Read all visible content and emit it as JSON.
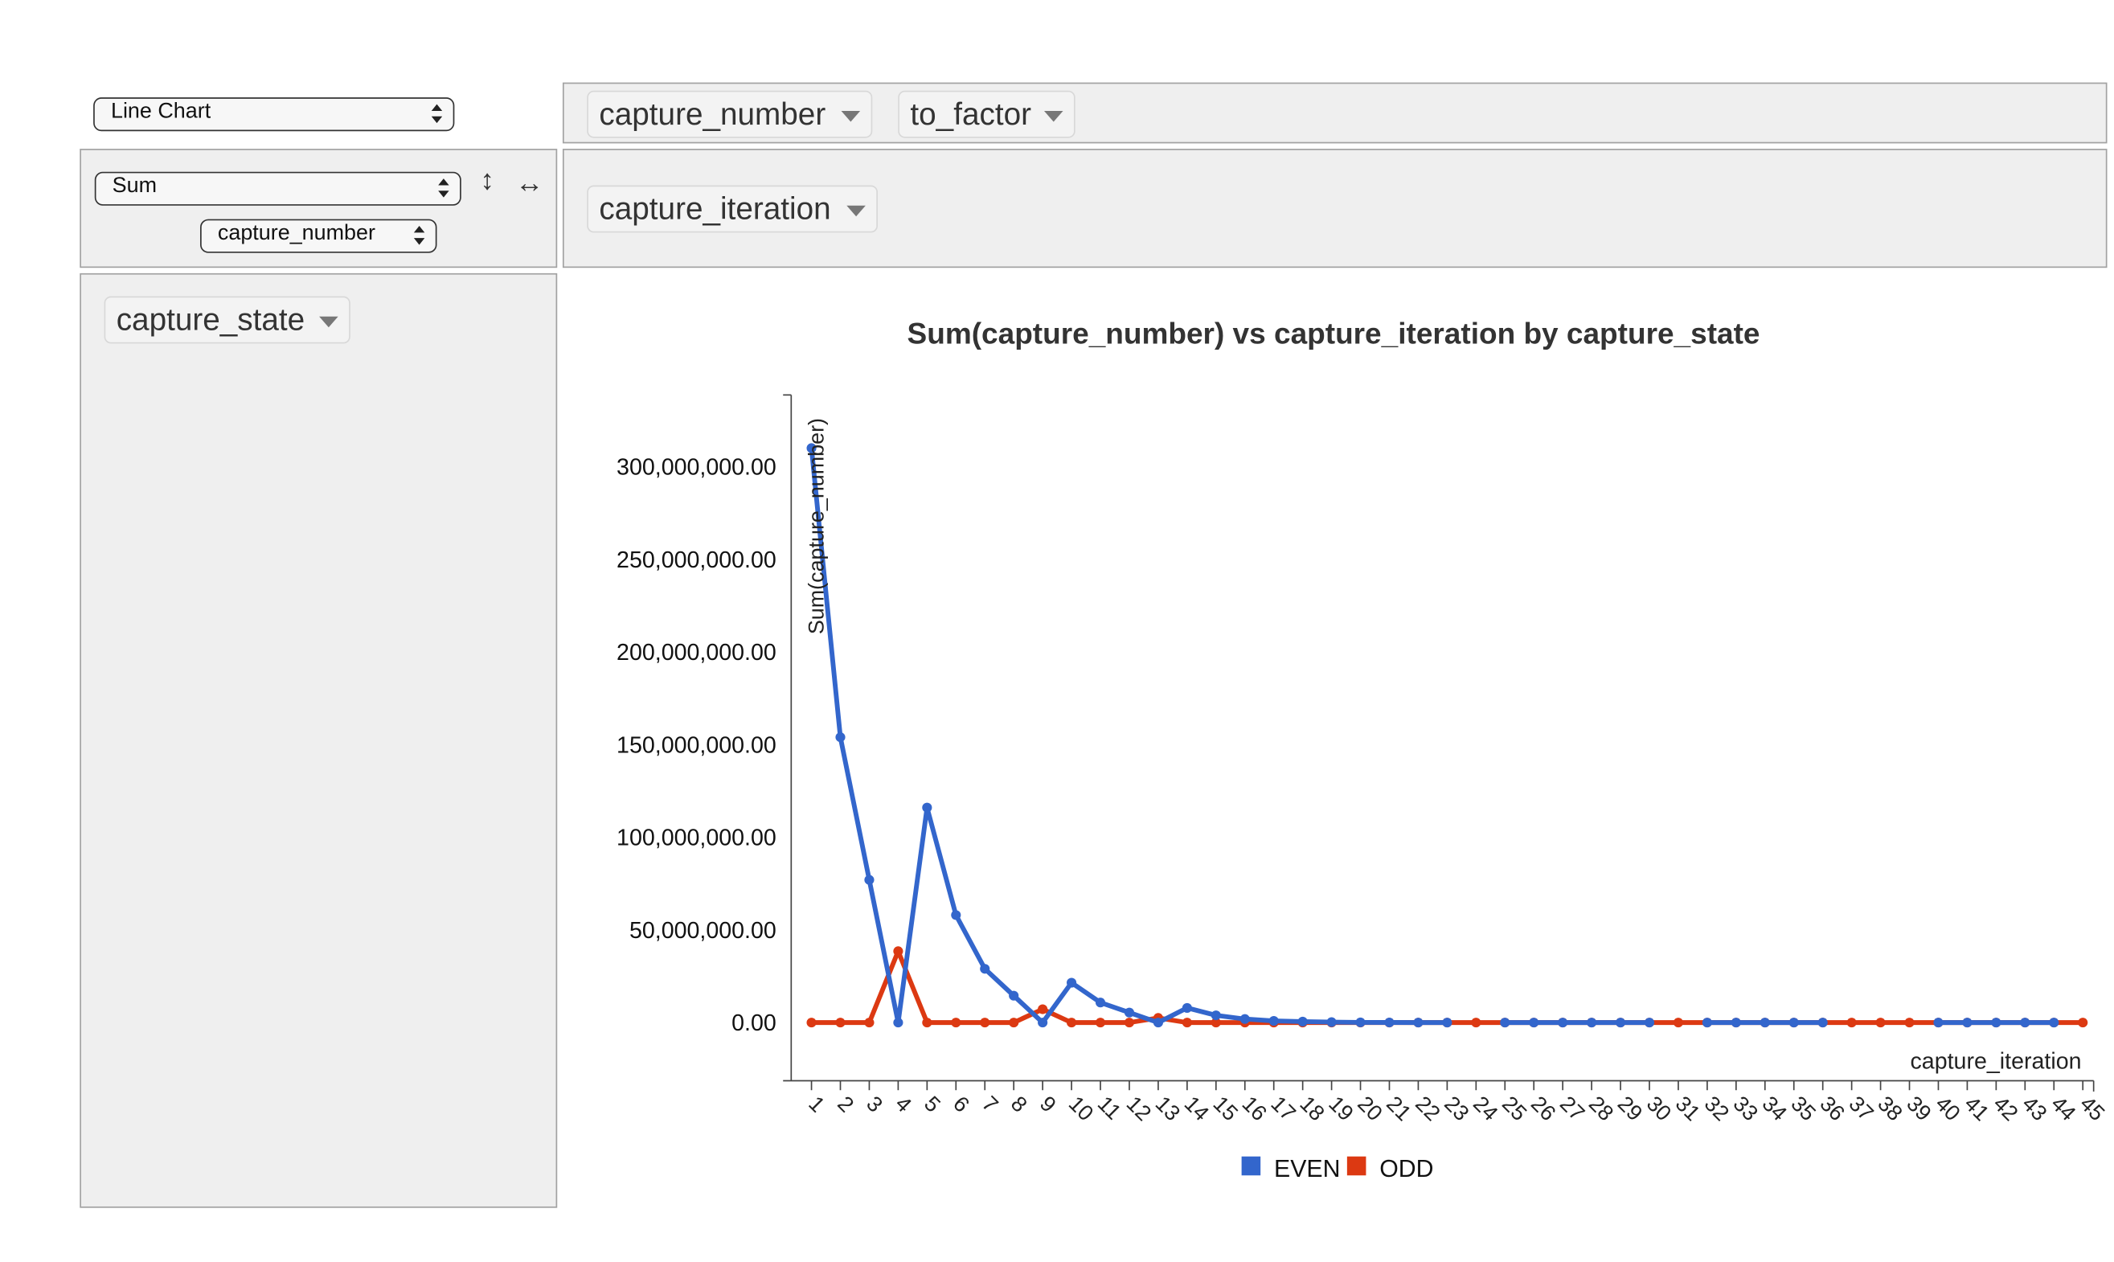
{
  "controls": {
    "renderer_select": "Line Chart",
    "aggregator_select": "Sum",
    "aggregator_field_select": "capture_number",
    "row_order_glyph": "↕",
    "col_order_glyph": "↔"
  },
  "columns_area": {
    "fields": [
      "capture_number",
      "to_factor"
    ]
  },
  "rows_area": {
    "fields": [
      "capture_iteration"
    ]
  },
  "unused_area": {
    "fields": [
      "capture_state"
    ]
  },
  "chart_data": {
    "type": "line",
    "title": "Sum(capture_number) vs capture_iteration by capture_state",
    "xlabel": "capture_iteration",
    "ylabel": "Sum(capture_number)",
    "ylim": [
      -30000000,
      340000000
    ],
    "yticks": [
      0,
      50000000,
      100000000,
      150000000,
      200000000,
      250000000,
      300000000
    ],
    "ytick_labels": [
      "0.00",
      "50,000,000.00",
      "100,000,000.00",
      "150,000,000.00",
      "200,000,000.00",
      "250,000,000.00",
      "300,000,000.00"
    ],
    "x": [
      1,
      2,
      3,
      4,
      5,
      6,
      7,
      8,
      9,
      10,
      11,
      12,
      13,
      14,
      15,
      16,
      17,
      18,
      19,
      20,
      21,
      22,
      23,
      24,
      25,
      26,
      27,
      28,
      29,
      30,
      31,
      32,
      33,
      34,
      35,
      36,
      37,
      38,
      39,
      40,
      41,
      42,
      43,
      44,
      45
    ],
    "legend": "bottom",
    "series": [
      {
        "name": "EVEN",
        "color": "#3366cc",
        "values": [
          310000000,
          154000000,
          77000000,
          0,
          116000000,
          58000000,
          29000000,
          14500000,
          0,
          21500000,
          10800000,
          5400000,
          0,
          7900000,
          3900000,
          1900000,
          900000,
          500000,
          250000,
          100000,
          50000,
          0,
          0,
          null,
          0,
          0,
          0,
          0,
          0,
          0,
          null,
          0,
          0,
          0,
          0,
          0,
          null,
          null,
          null,
          0,
          0,
          0,
          0,
          0,
          null
        ]
      },
      {
        "name": "ODD",
        "color": "#dc3912",
        "values": [
          0,
          0,
          0,
          38500000,
          0,
          0,
          0,
          0,
          7200000,
          0,
          0,
          0,
          2500000,
          0,
          0,
          0,
          0,
          0,
          0,
          0,
          0,
          0,
          0,
          0,
          0,
          0,
          0,
          0,
          0,
          0,
          0,
          0,
          0,
          0,
          0,
          0,
          0,
          0,
          0,
          0,
          0,
          0,
          0,
          0,
          0
        ]
      }
    ]
  }
}
